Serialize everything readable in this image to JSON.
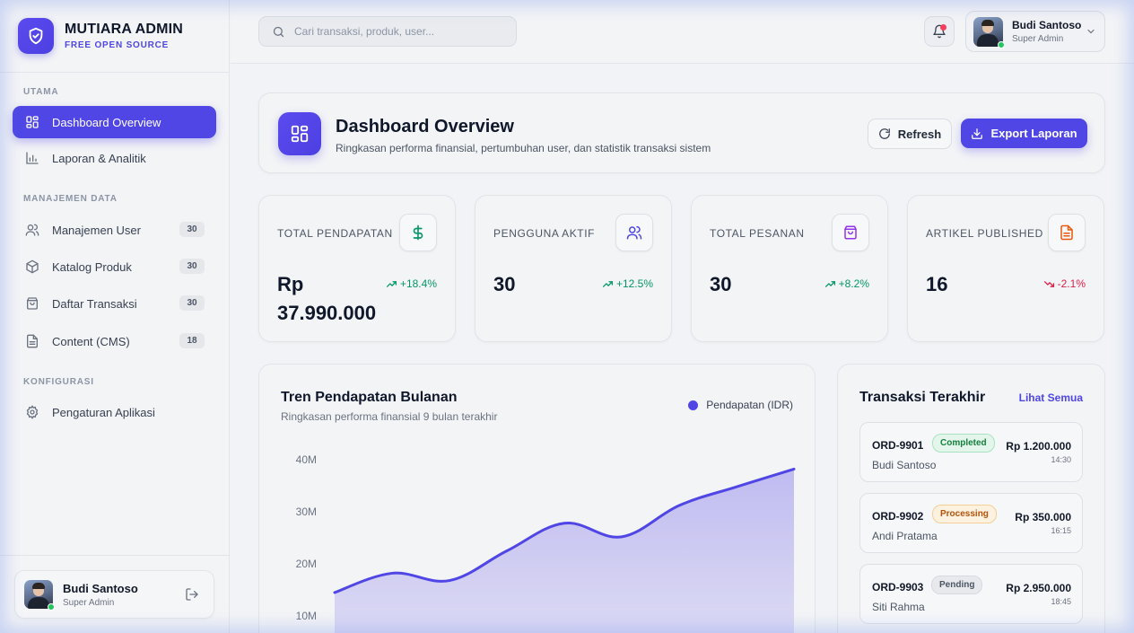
{
  "brand": {
    "title": "MUTIARA ADMIN",
    "subtitle": "FREE OPEN SOURCE"
  },
  "sidebar": {
    "sections": [
      {
        "label": "UTAMA"
      },
      {
        "label": "MANAJEMEN DATA"
      },
      {
        "label": "KONFIGURASI"
      }
    ],
    "items": [
      {
        "label": "Dashboard Overview",
        "icon": "grid-icon",
        "active": true
      },
      {
        "label": "Laporan & Analitik",
        "icon": "bar-chart-icon"
      },
      {
        "label": "Manajemen User",
        "icon": "users-icon",
        "badge": "30"
      },
      {
        "label": "Katalog Produk",
        "icon": "box-icon",
        "badge": "30"
      },
      {
        "label": "Daftar Transaksi",
        "icon": "shopping-bag-icon",
        "badge": "30"
      },
      {
        "label": "Content (CMS)",
        "icon": "document-icon",
        "badge": "18"
      },
      {
        "label": "Pengaturan Aplikasi",
        "icon": "gear-icon"
      }
    ],
    "user": {
      "name": "Budi Santoso",
      "role": "Super Admin"
    }
  },
  "topbar": {
    "search_placeholder": "Cari transaksi, produk, user...",
    "user": {
      "name": "Budi Santoso",
      "role": "Super Admin"
    }
  },
  "header": {
    "title": "Dashboard Overview",
    "subtitle": "Ringkasan performa finansial, pertumbuhan user, dan statistik transaksi sistem",
    "refresh_label": "Refresh",
    "export_label": "Export Laporan"
  },
  "stats": [
    {
      "label": "TOTAL PENDAPATAN",
      "value": "Rp 37.990.000",
      "trend": "+18.4%",
      "direction": "up",
      "icon": "dollar-icon",
      "color": "#059669"
    },
    {
      "label": "PENGGUNA AKTIF",
      "value": "30",
      "trend": "+12.5%",
      "direction": "up",
      "icon": "users-icon",
      "color": "#4f46e5"
    },
    {
      "label": "TOTAL PESANAN",
      "value": "30",
      "trend": "+8.2%",
      "direction": "up",
      "icon": "shopping-bag-icon",
      "color": "#9333ea"
    },
    {
      "label": "ARTIKEL PUBLISHED",
      "value": "16",
      "trend": "-2.1%",
      "direction": "down",
      "icon": "document-icon",
      "color": "#ea580c"
    }
  ],
  "chart_data": {
    "type": "area",
    "title": "Tren Pendapatan Bulanan",
    "subtitle": "Ringkasan performa finansial 9 bulan terakhir",
    "series": [
      {
        "name": "Pendapatan (IDR)",
        "values": [
          14.5,
          18.2,
          16.8,
          22.5,
          27.8,
          25.2,
          31.2,
          34.8,
          38.2
        ]
      }
    ],
    "y_ticks": [
      "40M",
      "30M",
      "20M",
      "10M"
    ],
    "y_tick_values": [
      40,
      30,
      20,
      10
    ],
    "ylim": [
      0,
      40
    ],
    "legend_position": "top-right",
    "grid": false,
    "color": "#4f46e5"
  },
  "transactions": {
    "title": "Transaksi Terakhir",
    "link": "Lihat Semua",
    "items": [
      {
        "id": "ORD-9901",
        "status": "Completed",
        "name": "Budi Santoso",
        "amount": "Rp 1.200.000",
        "time": "14:30"
      },
      {
        "id": "ORD-9902",
        "status": "Processing",
        "name": "Andi Pratama",
        "amount": "Rp 350.000",
        "time": "16:15"
      },
      {
        "id": "ORD-9903",
        "status": "Pending",
        "name": "Siti Rahma",
        "amount": "Rp 2.950.000",
        "time": "18:45"
      }
    ]
  }
}
